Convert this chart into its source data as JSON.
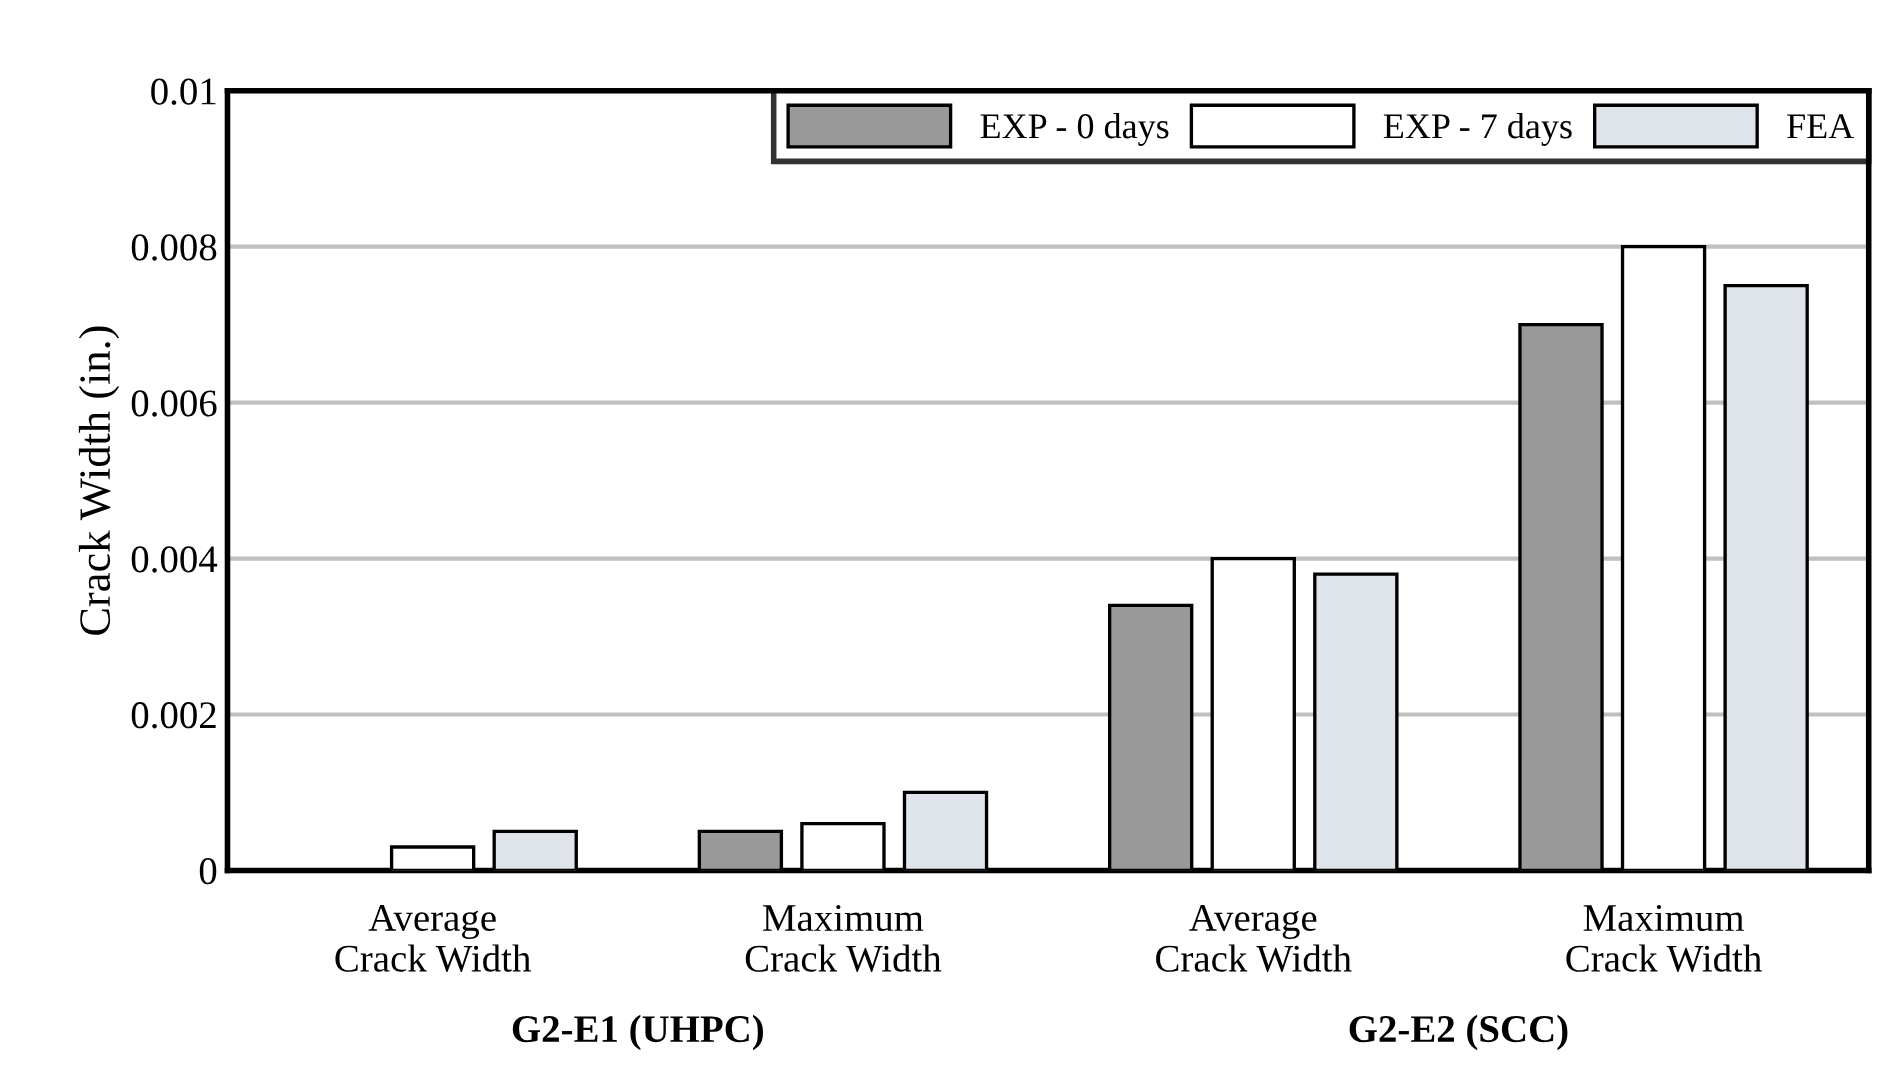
{
  "chart_data": {
    "type": "bar",
    "ylabel": "Crack Width (in.)",
    "categories": [
      "Average\nCrack Width",
      "Maximum\nCrack Width",
      "Average\nCrack Width",
      "Maximum\nCrack Width"
    ],
    "series": [
      {
        "name": "EXP - 0 days",
        "color": "#999999",
        "values": [
          null,
          0.0005,
          0.0034,
          0.007
        ]
      },
      {
        "name": "EXP - 7 days",
        "color": "#ffffff",
        "values": [
          0.0003,
          0.0006,
          0.004,
          0.008
        ]
      },
      {
        "name": "FEA",
        "color": "#dfe3ea",
        "values": [
          0.0005,
          0.001,
          0.0038,
          0.0075
        ]
      }
    ],
    "ylim": [
      0,
      0.01
    ],
    "yticks": [
      0,
      0.002,
      0.004,
      0.006,
      0.008,
      0.01
    ],
    "grid": "y",
    "legend": "top right",
    "annotations": [
      "G2-E1 (UHPC)",
      "G2-E2 (SCC)"
    ]
  }
}
